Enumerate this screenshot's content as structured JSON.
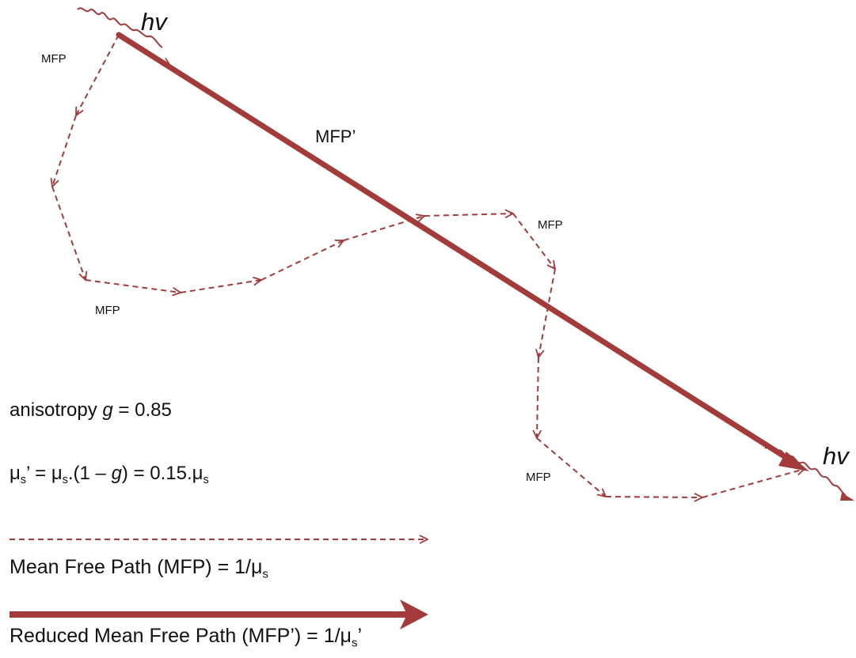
{
  "labels": {
    "photon_in": "hv",
    "photon_out": "hv",
    "mfp_1": "MFP",
    "mfp_2": "MFP",
    "mfp_3": "MFP",
    "mfp_4": "MFP",
    "mfp_prime": "MFP’"
  },
  "anisotropy": {
    "prefix": "anisotropy ",
    "symbol": "g",
    "value": " = 0.85"
  },
  "formula": {
    "mu": "μ",
    "sub": "s",
    "eq1": "’ = ",
    "eq2": ".(1 – ",
    "g": "g",
    "eq3": ") = 0.15."
  },
  "legend": {
    "dashed_text": "Mean Free Path (MFP) = 1/μ",
    "dashed_sub": "s",
    "solid_text": "Reduced Mean Free Path (MFP’) = 1/μ",
    "solid_sub": "s",
    "solid_suffix": "’"
  },
  "colors": {
    "path": "#a33b3b",
    "text": "#111111"
  }
}
